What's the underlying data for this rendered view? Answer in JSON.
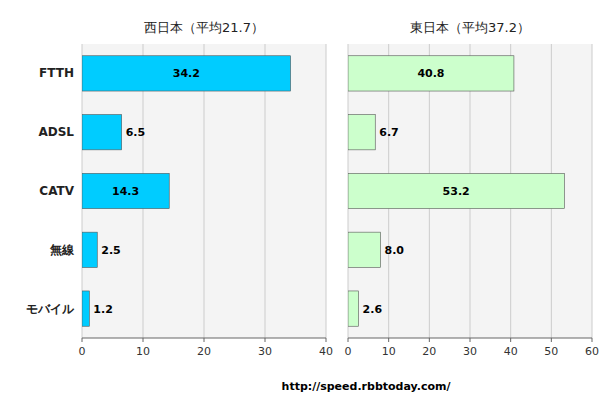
{
  "chart_data": [
    {
      "type": "bar",
      "orientation": "horizontal",
      "title": "西日本（平均21.7）",
      "categories": [
        "FTTH",
        "ADSL",
        "CATV",
        "無線",
        "モバイル"
      ],
      "values": [
        34.2,
        6.5,
        14.3,
        2.5,
        1.2
      ],
      "color": "#00CCFF",
      "xlim": [
        0,
        40
      ],
      "xticks": [
        0,
        10,
        20,
        30,
        40
      ],
      "grid": true,
      "data_labels": true
    },
    {
      "type": "bar",
      "orientation": "horizontal",
      "title": "東日本（平均37.2）",
      "categories": [
        "FTTH",
        "ADSL",
        "CATV",
        "無線",
        "モバイル"
      ],
      "values": [
        40.8,
        6.7,
        53.2,
        8.0,
        2.6
      ],
      "value_labels": [
        "40.8",
        "6.7",
        "53.2",
        "8.0",
        "2.6"
      ],
      "color": "#CCFFCC",
      "xlim": [
        0,
        60
      ],
      "xticks": [
        0,
        10,
        20,
        30,
        40,
        50,
        60
      ],
      "grid": true,
      "data_labels": true,
      "tick_labels": "x",
      "annotation": "http://speed.rbbtoday.com/"
    }
  ]
}
